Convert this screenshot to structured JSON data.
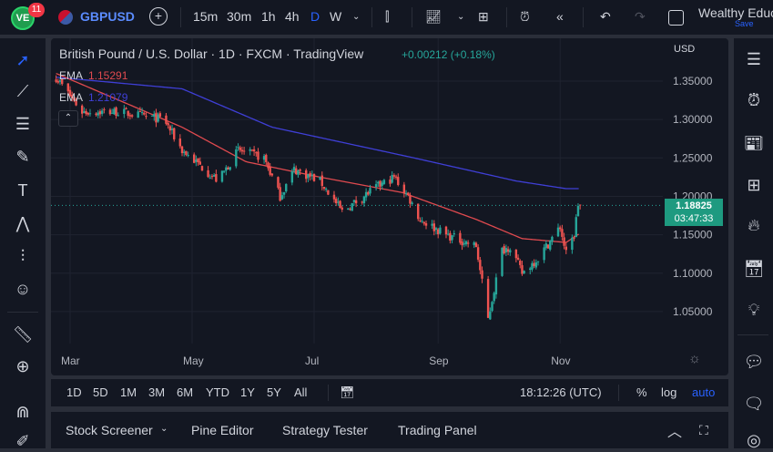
{
  "topbar": {
    "notif_count": "11",
    "symbol": "GBPUSD",
    "intervals": [
      "15m",
      "30m",
      "1h",
      "4h",
      "D",
      "W"
    ],
    "active_interval": "D",
    "account": "Wealthy Educ",
    "save": "Save"
  },
  "legend": {
    "title": "British Pound / U.S. Dollar · 1D · FXCM · TradingView",
    "change": "+0.00212 (+0.18%)",
    "ema1_label": "EMA",
    "ema1_value": "1.15291",
    "ema2_label": "EMA",
    "ema2_value": "1.21079"
  },
  "price_axis": {
    "currency": "USD",
    "ticks": [
      "1.35000",
      "1.30000",
      "1.25000",
      "1.20000",
      "1.15000",
      "1.10000",
      "1.05000"
    ],
    "last_price": "1.18825",
    "countdown": "03:47:33"
  },
  "time_axis": {
    "labels": [
      "Mar",
      "May",
      "Jul",
      "Sep",
      "Nov"
    ]
  },
  "timeframes": {
    "ranges": [
      "1D",
      "5D",
      "1M",
      "3M",
      "6M",
      "YTD",
      "1Y",
      "5Y",
      "All"
    ],
    "clock": "18:12:26 (UTC)",
    "percent": "%",
    "log": "log",
    "auto": "auto"
  },
  "bottom": {
    "tabs": [
      "Stock Screener",
      "Pine Editor",
      "Strategy Tester",
      "Trading Panel"
    ]
  },
  "colors": {
    "up": "#26a69a",
    "down": "#ef5350",
    "ema_fast": "#e04a4f",
    "ema_slow": "#3f3fd6",
    "accent": "#2962ff",
    "last_price_bg": "#1e9a80"
  },
  "chart_data": {
    "type": "candlestick",
    "price_path": [
      [
        "Feb 22",
        1.355
      ],
      [
        "Mar 7",
        1.31
      ],
      [
        "Mar 25",
        1.31
      ],
      [
        "Apr 17",
        1.3
      ],
      [
        "Apr 26",
        1.26
      ],
      [
        "May 14",
        1.22
      ],
      [
        "May 24",
        1.26
      ],
      [
        "Jun 6",
        1.25
      ],
      [
        "Jun 14",
        1.2
      ],
      [
        "Jun 21",
        1.235
      ],
      [
        "Jul 4",
        1.22
      ],
      [
        "Jul 15",
        1.18
      ],
      [
        "Jul 31",
        1.21
      ],
      [
        "Aug 10",
        1.225
      ],
      [
        "Aug 17",
        1.2
      ],
      [
        "Aug 23",
        1.17
      ],
      [
        "Sep 5",
        1.15
      ],
      [
        "Sep 20",
        1.135
      ],
      [
        "Sep 26",
        1.04
      ],
      [
        "Oct 3",
        1.13
      ],
      [
        "Oct 7",
        1.135
      ],
      [
        "Oct 13",
        1.1
      ],
      [
        "Oct 21",
        1.12
      ],
      [
        "Nov 1",
        1.16
      ],
      [
        "Nov 4",
        1.125
      ],
      [
        "Nov 8",
        1.15
      ],
      [
        "Nov 10",
        1.19
      ],
      [
        "Nov 11",
        1.188
      ]
    ],
    "ema_fast": [
      [
        "Feb 22",
        1.36
      ],
      [
        "Apr 26",
        1.29
      ],
      [
        "May 28",
        1.245
      ],
      [
        "Jul 4",
        1.225
      ],
      [
        "Aug 14",
        1.205
      ],
      [
        "Sep 20",
        1.17
      ],
      [
        "Oct 13",
        1.145
      ],
      [
        "Nov 4",
        1.14
      ],
      [
        "Nov 11",
        1.152
      ]
    ],
    "ema_slow": [
      [
        "Feb 22",
        1.355
      ],
      [
        "Apr 26",
        1.34
      ],
      [
        "Jun 10",
        1.29
      ],
      [
        "Aug 20",
        1.25
      ],
      [
        "Oct 10",
        1.22
      ],
      [
        "Nov 4",
        1.21
      ],
      [
        "Nov 11",
        1.21
      ]
    ],
    "ylim": [
      1.0,
      1.4
    ]
  }
}
